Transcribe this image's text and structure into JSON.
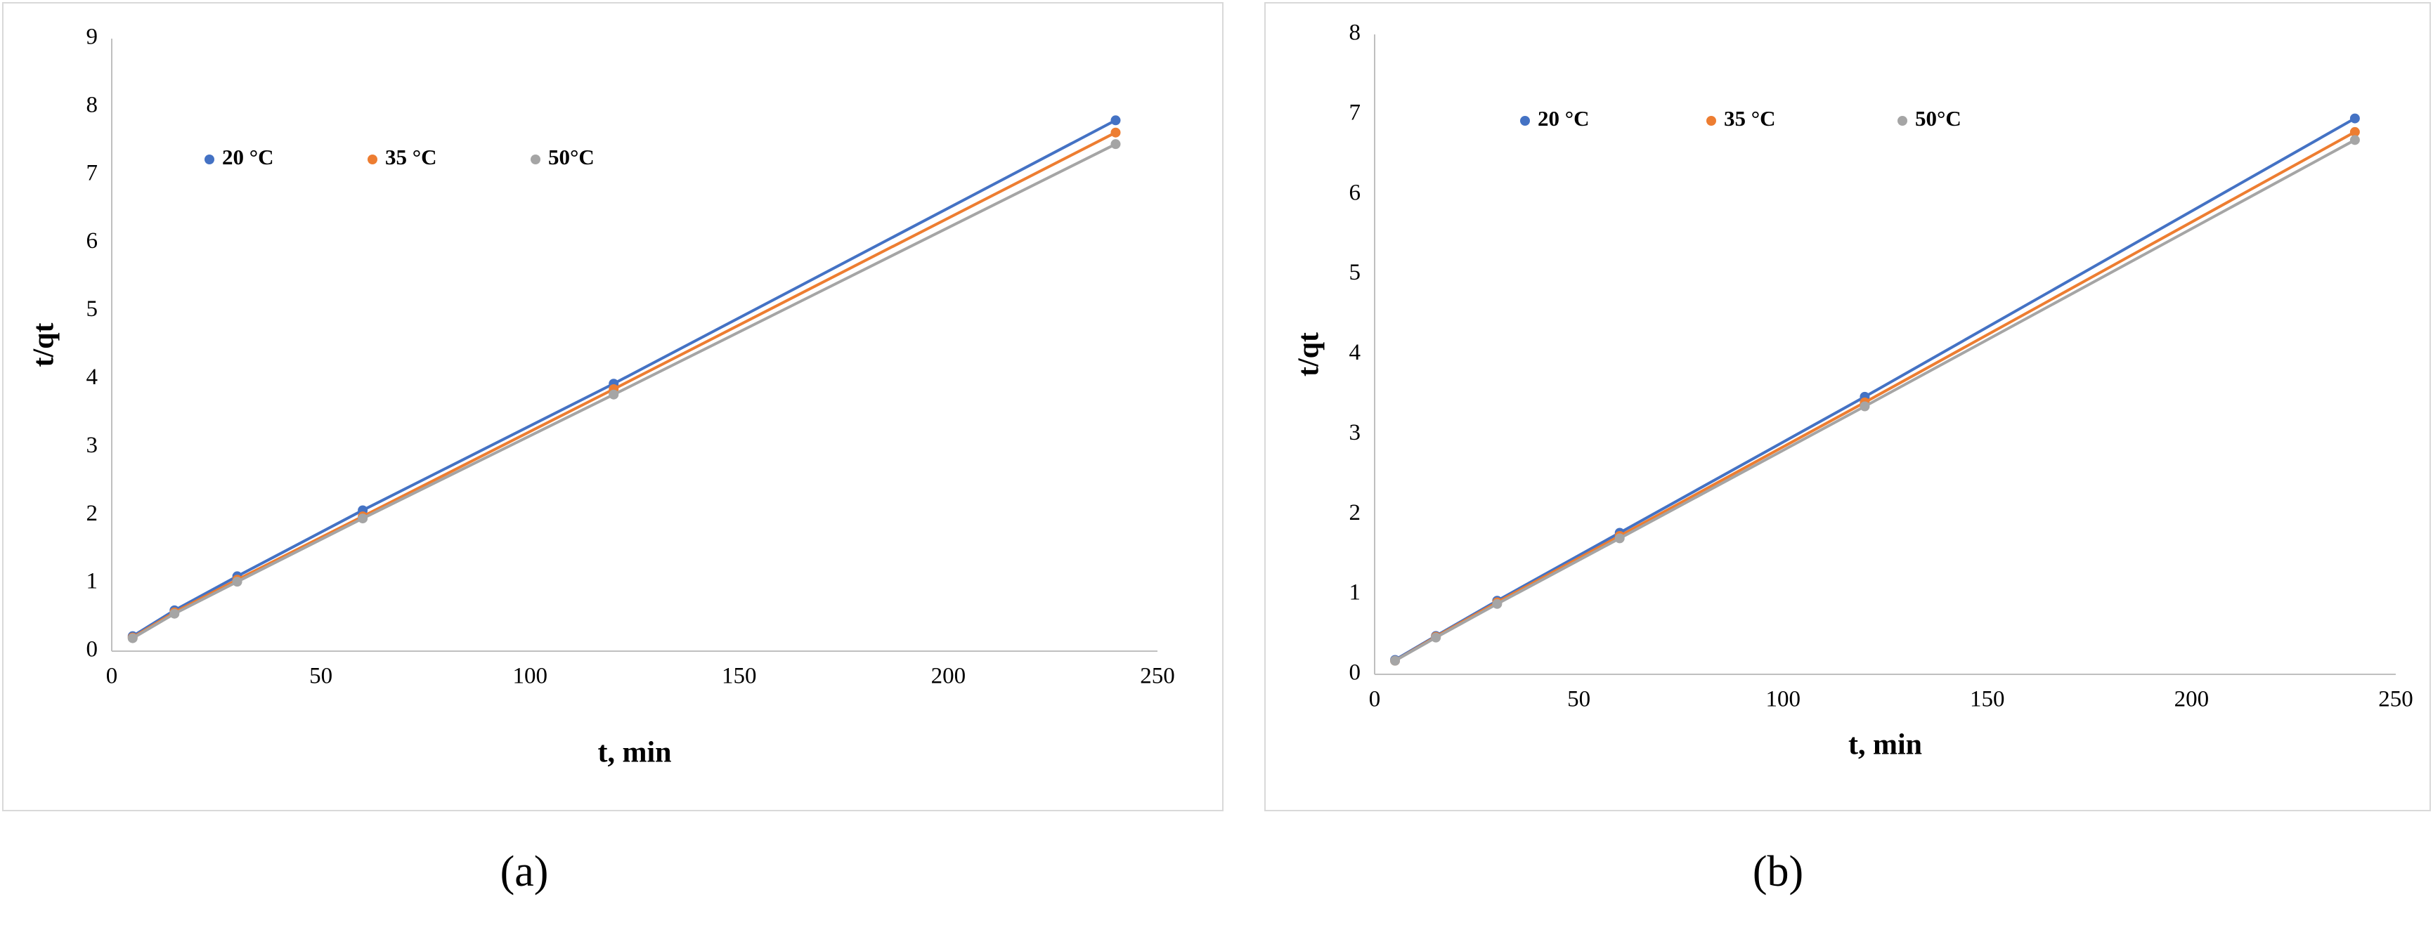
{
  "chart_data": [
    {
      "type": "line",
      "label": "(a)",
      "x_label": "t, min",
      "y_label": "t/qt",
      "x": [
        5,
        15,
        30,
        60,
        120,
        240
      ],
      "xlim": [
        0,
        250
      ],
      "xticks": [
        0,
        50,
        100,
        150,
        200,
        250
      ],
      "ylim": [
        0,
        9
      ],
      "yticks": [
        0,
        1,
        2,
        3,
        4,
        5,
        6,
        7,
        8,
        9
      ],
      "series": [
        {
          "name": "20 °C",
          "color": "#4472c4",
          "values": [
            0.22,
            0.6,
            1.1,
            2.07,
            3.93,
            7.8
          ]
        },
        {
          "name": "35 °C",
          "color": "#ed7d31",
          "values": [
            0.2,
            0.57,
            1.05,
            1.98,
            3.85,
            7.62
          ]
        },
        {
          "name": "50°C",
          "color": "#a5a5a5",
          "values": [
            0.19,
            0.55,
            1.02,
            1.95,
            3.77,
            7.45
          ]
        }
      ]
    },
    {
      "type": "line",
      "label": "(b)",
      "x_label": "t, min",
      "y_label": "t/qt",
      "x": [
        5,
        15,
        30,
        60,
        120,
        240
      ],
      "xlim": [
        0,
        250
      ],
      "xticks": [
        0,
        50,
        100,
        150,
        200,
        250
      ],
      "ylim": [
        0,
        8
      ],
      "yticks": [
        0,
        1,
        2,
        3,
        4,
        5,
        6,
        7,
        8
      ],
      "series": [
        {
          "name": "20 °C",
          "color": "#4472c4",
          "values": [
            0.18,
            0.48,
            0.92,
            1.77,
            3.47,
            6.95
          ]
        },
        {
          "name": "35 °C",
          "color": "#ed7d31",
          "values": [
            0.17,
            0.47,
            0.9,
            1.73,
            3.4,
            6.78
          ]
        },
        {
          "name": "50°C",
          "color": "#a5a5a5",
          "values": [
            0.17,
            0.46,
            0.88,
            1.7,
            3.35,
            6.68
          ]
        }
      ]
    }
  ]
}
